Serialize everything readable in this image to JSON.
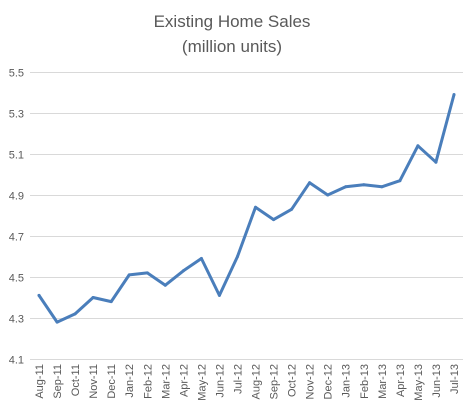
{
  "chart_data": {
    "type": "line",
    "title": "Existing Home Sales",
    "subtitle": "(million units)",
    "xlabel": "",
    "ylabel": "",
    "ylim": [
      4.1,
      5.5
    ],
    "yticks": [
      4.1,
      4.3,
      4.5,
      4.7,
      4.9,
      5.1,
      5.3,
      5.5
    ],
    "ytick_labels": [
      "4.1",
      "4.3",
      "4.5",
      "4.7",
      "4.9",
      "5.1",
      "5.3",
      "5.5"
    ],
    "grid": true,
    "legend": "none",
    "categories": [
      "Aug-11",
      "Sep-11",
      "Oct-11",
      "Nov-11",
      "Dec-11",
      "Jan-12",
      "Feb-12",
      "Mar-12",
      "Apr-12",
      "May-12",
      "Jun-12",
      "Jul-12",
      "Aug-12",
      "Sep-12",
      "Oct-12",
      "Nov-12",
      "Dec-12",
      "Jan-13",
      "Feb-13",
      "Mar-13",
      "Apr-13",
      "May-13",
      "Jun-13",
      "Jul-13"
    ],
    "series": [
      {
        "name": "",
        "color": "#4a7ebb",
        "values": [
          4.41,
          4.28,
          4.32,
          4.4,
          4.38,
          4.51,
          4.52,
          4.46,
          4.53,
          4.59,
          4.41,
          4.6,
          4.84,
          4.78,
          4.83,
          4.96,
          4.9,
          4.94,
          4.95,
          4.94,
          4.97,
          5.14,
          5.06,
          5.39
        ]
      }
    ]
  }
}
